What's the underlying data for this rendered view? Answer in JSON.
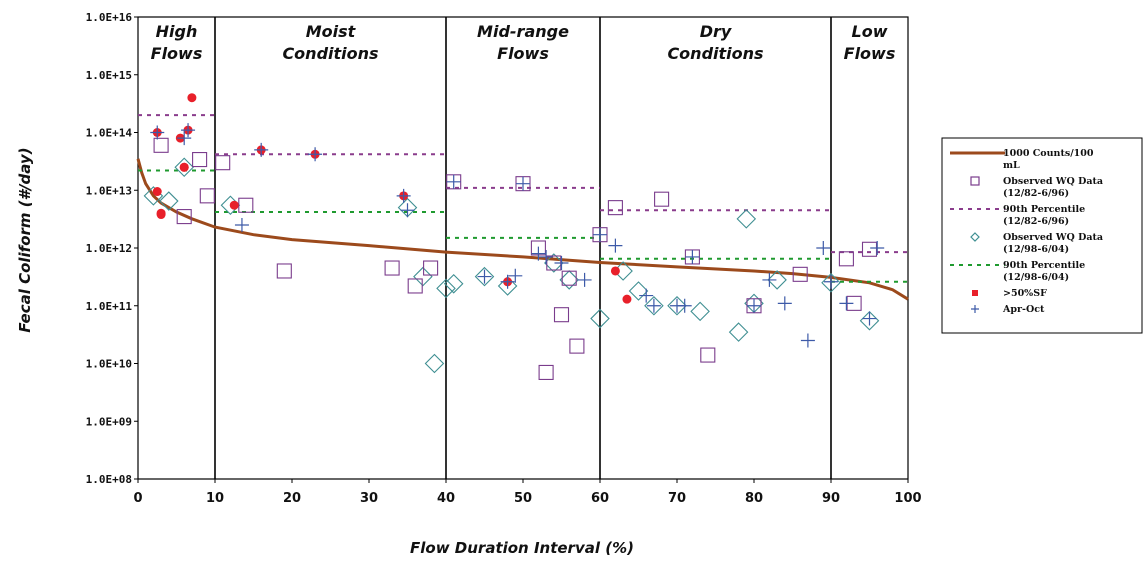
{
  "chart_data": {
    "type": "scatter",
    "xlabel": "Flow Duration Interval (%)",
    "ylabel": "Fecal Coliform (#/day)",
    "xlim": [
      0,
      100
    ],
    "ylim_log10": [
      8,
      16
    ],
    "y_scale": "log",
    "x_ticks": [
      "0",
      "10",
      "20",
      "30",
      "40",
      "50",
      "60",
      "70",
      "80",
      "90",
      "100"
    ],
    "y_ticks": [
      "1.0E+08",
      "1.0E+09",
      "1.0E+10",
      "1.0E+11",
      "1.0E+12",
      "1.0E+13",
      "1.0E+14",
      "1.0E+15",
      "1.0E+16"
    ],
    "zones": [
      {
        "lines": [
          "High",
          "Flows"
        ],
        "x0": 0,
        "x1": 10
      },
      {
        "lines": [
          "Moist",
          "Conditions"
        ],
        "x0": 10,
        "x1": 40
      },
      {
        "lines": [
          "Mid-range",
          "Flows"
        ],
        "x0": 40,
        "x1": 60
      },
      {
        "lines": [
          "Dry",
          "Conditions"
        ],
        "x0": 60,
        "x1": 90
      },
      {
        "lines": [
          "Low",
          "Flows"
        ],
        "x0": 90,
        "x1": 100
      }
    ],
    "zone_boundaries": [
      10,
      40,
      60,
      90
    ],
    "colors": {
      "curve": "#9c4a1c",
      "square": "#7a3c8c",
      "p90_square": "#8a3c8c",
      "diamond": "#3f8f92",
      "p90_diamond": "#1f9a2f",
      "exceed": "#e8202a",
      "cross": "#3d5aa8"
    },
    "legend": [
      {
        "key": "curve",
        "label_lines": [
          "1000 Counts/100",
          "mL"
        ]
      },
      {
        "key": "square",
        "label_lines": [
          "Observed WQ Data",
          "(12/82-6/96)"
        ]
      },
      {
        "key": "p90_square",
        "label_lines": [
          "90th Percentile",
          "(12/82-6/96)"
        ]
      },
      {
        "key": "diamond",
        "label_lines": [
          "Observed WQ Data",
          "(12/98-6/04)"
        ]
      },
      {
        "key": "p90_diamond",
        "label_lines": [
          "90th Percentile",
          "(12/98-6/04)"
        ]
      },
      {
        "key": "exceed",
        "label_lines": [
          ">50%SF"
        ]
      },
      {
        "key": "cross",
        "label_lines": [
          "Apr-Oct"
        ]
      }
    ],
    "series": [
      {
        "name": "1000 Counts/100 mL",
        "kind": "curve",
        "x": [
          0,
          0.5,
          1,
          2,
          3,
          5,
          7,
          10,
          15,
          20,
          30,
          40,
          50,
          60,
          70,
          80,
          85,
          90,
          95,
          98,
          100
        ],
        "y": [
          35000000000000.0,
          20000000000000.0,
          13000000000000.0,
          8000000000000.0,
          6000000000000.0,
          4200000000000.0,
          3200000000000.0,
          2300000000000.0,
          1700000000000.0,
          1400000000000.0,
          1100000000000.0,
          850000000000.0,
          700000000000.0,
          560000000000.0,
          470000000000.0,
          400000000000.0,
          360000000000.0,
          310000000000.0,
          250000000000.0,
          190000000000.0,
          130000000000.0
        ]
      },
      {
        "name": "Observed WQ Data (12/82-6/96)",
        "kind": "square",
        "x": [
          3,
          6,
          8,
          9,
          11,
          14,
          19,
          33,
          36,
          38,
          41,
          50,
          52,
          54,
          56,
          57,
          60,
          62,
          68,
          72,
          74,
          80,
          86,
          92,
          95,
          55,
          53,
          93
        ],
        "y": [
          60000000000000.0,
          3500000000000.0,
          34000000000000.0,
          8000000000000.0,
          30000000000000.0,
          5500000000000.0,
          400000000000.0,
          450000000000.0,
          220000000000.0,
          450000000000.0,
          14000000000000.0,
          13000000000000.0,
          1000000000000.0,
          550000000000.0,
          300000000000.0,
          20000000000.0,
          1700000000000.0,
          5000000000000.0,
          7000000000000.0,
          700000000000.0,
          14000000000.0,
          100000000000.0,
          350000000000.0,
          650000000000.0,
          950000000000.0,
          70000000000.0,
          7000000000.0,
          110000000000.0
        ]
      },
      {
        "name": "90th Percentile (12/82-6/96)",
        "kind": "p90_square",
        "segments": [
          [
            0,
            10,
            200000000000000.0
          ],
          [
            10,
            40,
            42000000000000.0
          ],
          [
            40,
            60,
            11000000000000.0
          ],
          [
            60,
            90,
            4500000000000.0
          ],
          [
            90,
            100,
            850000000000.0
          ]
        ]
      },
      {
        "name": "Observed WQ Data (12/98-6/04)",
        "kind": "diamond",
        "x": [
          2,
          4,
          6,
          12,
          37,
          38.5,
          40,
          41,
          45,
          48,
          54,
          56,
          60,
          63,
          65,
          67,
          70,
          73,
          78,
          79,
          80,
          83,
          90,
          95,
          35
        ],
        "y": [
          8000000000000.0,
          6500000000000.0,
          25000000000000.0,
          5500000000000.0,
          320000000000.0,
          10000000000.0,
          200000000000.0,
          240000000000.0,
          320000000000.0,
          220000000000.0,
          550000000000.0,
          280000000000.0,
          60000000000.0,
          400000000000.0,
          180000000000.0,
          100000000000.0,
          100000000000.0,
          80000000000.0,
          35000000000.0,
          3200000000000.0,
          110000000000.0,
          280000000000.0,
          250000000000.0,
          55000000000.0,
          5000000000000.0
        ]
      },
      {
        "name": "90th Percentile (12/98-6/04)",
        "kind": "p90_diamond",
        "segments": [
          [
            0,
            10,
            22000000000000.0
          ],
          [
            10,
            40,
            4200000000000.0
          ],
          [
            40,
            60,
            1500000000000.0
          ],
          [
            60,
            90,
            650000000000.0
          ],
          [
            90,
            100,
            260000000000.0
          ]
        ]
      },
      {
        "name": ">50%SF",
        "kind": "exceed",
        "x": [
          2.5,
          3,
          6,
          5.5,
          6.5,
          7,
          2.5,
          3,
          6,
          12.5,
          16,
          23,
          34.5,
          48,
          62,
          63.5
        ],
        "y": [
          100000000000000.0,
          4000000000000.0,
          25000000000000.0,
          80000000000000.0,
          110000000000000.0,
          400000000000000.0,
          9500000000000.0,
          3800000000000.0,
          25000000000000.0,
          5500000000000.0,
          50000000000000.0,
          42000000000000.0,
          8000000000000.0,
          260000000000.0,
          400000000000.0,
          130000000000.0
        ]
      },
      {
        "name": "Apr-Oct",
        "kind": "cross",
        "x": [
          2.5,
          6,
          6.5,
          13.5,
          16,
          23,
          34.5,
          35,
          41,
          45,
          48,
          49,
          50,
          52,
          53,
          55,
          58,
          60,
          62,
          66,
          67,
          70,
          71,
          72,
          80,
          82,
          84,
          87,
          89,
          90,
          92,
          95,
          96
        ],
        "y": [
          100000000000000.0,
          80000000000000.0,
          110000000000000.0,
          2500000000000.0,
          50000000000000.0,
          42000000000000.0,
          8000000000000.0,
          4500000000000.0,
          14000000000000.0,
          320000000000.0,
          260000000000.0,
          330000000000.0,
          13000000000000.0,
          800000000000.0,
          700000000000.0,
          550000000000.0,
          280000000000.0,
          1700000000000.0,
          1100000000000.0,
          150000000000.0,
          100000000000.0,
          100000000000.0,
          100000000000.0,
          700000000000.0,
          100000000000.0,
          280000000000.0,
          110000000000.0,
          25000000000.0,
          1000000000000.0,
          260000000000.0,
          110000000000.0,
          60000000000.0,
          1000000000000.0
        ]
      }
    ]
  }
}
